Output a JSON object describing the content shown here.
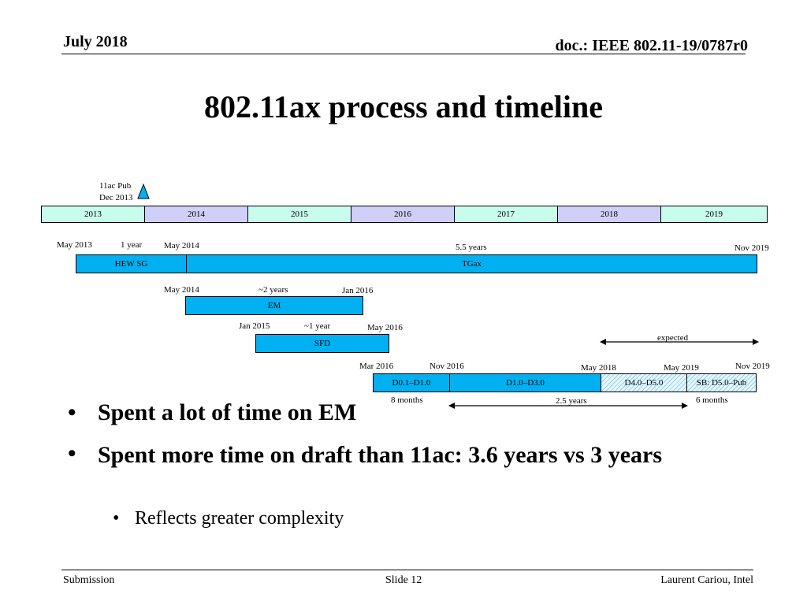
{
  "header": {
    "date": "July 2018",
    "doc": "doc.: IEEE 802.11-19/0787r0"
  },
  "title": "802.11ax process and timeline",
  "timeline": {
    "marker": {
      "line1": "11ac Pub",
      "line2": "Dec 2013"
    },
    "years": [
      "2013",
      "2014",
      "2015",
      "2016",
      "2017",
      "2018",
      "2019"
    ],
    "row1": {
      "start": "May 2013",
      "dur1": "1 year",
      "mid": "May 2014",
      "dur2": "5.5 years",
      "end": "Nov 2019",
      "bar1": "HEW SG",
      "bar2": "TGax"
    },
    "row2": {
      "start": "May 2014",
      "dur": "~2 years",
      "end": "Jan 2016",
      "bar": "EM"
    },
    "row3": {
      "start": "Jan 2015",
      "dur": "~1 year",
      "end": "May 2016",
      "bar": "SFD"
    },
    "expected": "expected",
    "row4": {
      "m1": "Mar 2016",
      "m2": "Nov 2016",
      "m3": "May 2018",
      "m4": "May 2019",
      "m5": "Nov 2019",
      "b1": "D0.1–D1.0",
      "b2": "D1.0–D3.0",
      "b3": "D4.0–D5.0",
      "b4": "SB: D5.0–Pub",
      "d1": "8 months",
      "d2": "2.5 years",
      "d3": "6 months"
    }
  },
  "bullets": [
    "Spent a lot of time on EM",
    "Spent more time on draft than 11ac: 3.6 years vs 3 years"
  ],
  "sub_bullets": [
    "Reflects greater complexity"
  ],
  "bullet_marks": {
    "main": "•",
    "sub": "•"
  },
  "footer": {
    "left": "Submission",
    "center": "Slide 12",
    "right": "Laurent Cariou, Intel"
  }
}
